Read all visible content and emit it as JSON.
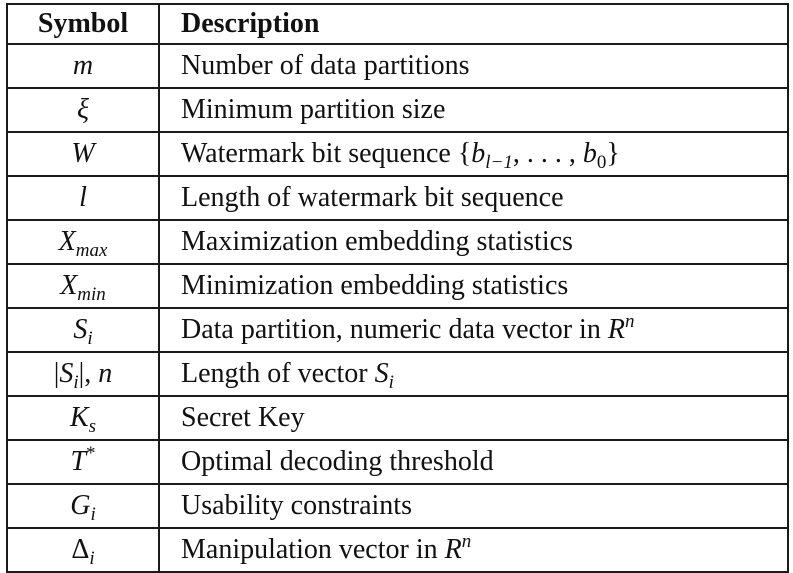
{
  "header": {
    "symbol": "Symbol",
    "description": "Description"
  },
  "rows": [
    {
      "symbol": "m",
      "description": "Number of data partitions"
    },
    {
      "symbol": "ξ",
      "description": "Minimum partition size"
    },
    {
      "symbol": "W",
      "description": "Watermark bit sequence",
      "math_set": "{b_{l−1}, . . . , b_0}"
    },
    {
      "symbol": "l",
      "description": "Length of watermark bit sequence"
    },
    {
      "symbol": "X_max",
      "description": "Maximization embedding statistics"
    },
    {
      "symbol": "X_min",
      "description": "Minimization embedding statistics"
    },
    {
      "symbol": "S_i",
      "description": "Data partition, numeric data vector in",
      "math_space": "R^n"
    },
    {
      "symbol": "|S_i|, n",
      "description": "Length of vector",
      "math_vec": "S_i"
    },
    {
      "symbol": "K_s",
      "description": "Secret Key"
    },
    {
      "symbol": "T*",
      "description": "Optimal decoding threshold"
    },
    {
      "symbol": "G_i",
      "description": "Usability constraints"
    },
    {
      "symbol": "Δ_i",
      "description": "Manipulation vector in",
      "math_space": "R^n"
    }
  ],
  "math": {
    "m": "m",
    "xi": "ξ",
    "W": "W",
    "l": "l",
    "X": "X",
    "max": "max",
    "min": "min",
    "S": "S",
    "i": "i",
    "n": "n",
    "K": "K",
    "s": "s",
    "T": "T",
    "star": "*",
    "G": "G",
    "Delta": "Δ",
    "R": "R",
    "b": "b",
    "l_minus_1": "l−1",
    "zero": "0",
    "lbrace": "{",
    "rbrace": "}",
    "ellipsis": ", . . . , ",
    "bar": "|",
    "comma_n": ", "
  }
}
